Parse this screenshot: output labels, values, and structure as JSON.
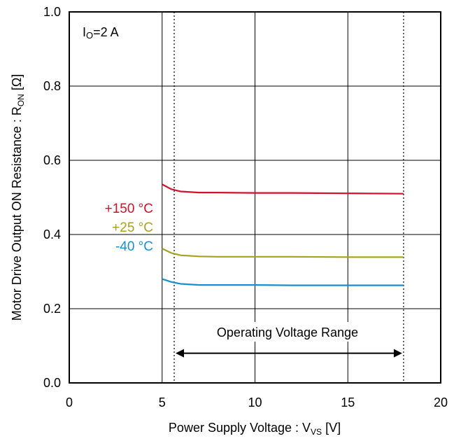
{
  "chart_data": {
    "type": "line",
    "xlabel": "Power Supply Voltage : V",
    "xlabel_sub": "VS",
    "xlabel_unit": " [V]",
    "ylabel": "Motor Drive Output ON Resistance : R",
    "ylabel_sub": "ON",
    "ylabel_unit": " [Ω]",
    "xlim": [
      0,
      20
    ],
    "ylim": [
      0.0,
      1.0
    ],
    "xticks": [
      0,
      5,
      10,
      15,
      20
    ],
    "yticks": [
      0.0,
      0.2,
      0.4,
      0.6,
      0.8,
      1.0
    ],
    "xtick_labels": [
      "0",
      "5",
      "10",
      "15",
      "20"
    ],
    "ytick_labels": [
      "0.0",
      "0.2",
      "0.4",
      "0.6",
      "0.8",
      "1.0"
    ],
    "grid": true,
    "condition": {
      "main": "I",
      "sub": "O",
      "rest": "=2 A"
    },
    "operating_range": {
      "label": "Operating Voltage Range",
      "x_start": 5.65,
      "x_end": 18.0,
      "y": 0.08
    },
    "series": [
      {
        "name": "+150 °C",
        "color": "#d0122c",
        "x": [
          5.0,
          5.5,
          6.0,
          7.0,
          8.0,
          10.0,
          12.0,
          15.0,
          18.0
        ],
        "y": [
          0.535,
          0.522,
          0.516,
          0.513,
          0.513,
          0.512,
          0.512,
          0.511,
          0.51
        ]
      },
      {
        "name": "+25 °C",
        "color": "#a8a020",
        "x": [
          5.0,
          5.5,
          6.0,
          7.0,
          8.0,
          10.0,
          12.0,
          15.0,
          18.0
        ],
        "y": [
          0.362,
          0.35,
          0.344,
          0.341,
          0.34,
          0.34,
          0.34,
          0.339,
          0.339
        ]
      },
      {
        "name": "-40 °C",
        "color": "#1a8fcf",
        "x": [
          5.0,
          5.5,
          6.0,
          7.0,
          8.0,
          10.0,
          12.0,
          15.0,
          18.0
        ],
        "y": [
          0.28,
          0.272,
          0.267,
          0.264,
          0.264,
          0.264,
          0.263,
          0.263,
          0.263
        ]
      }
    ]
  }
}
